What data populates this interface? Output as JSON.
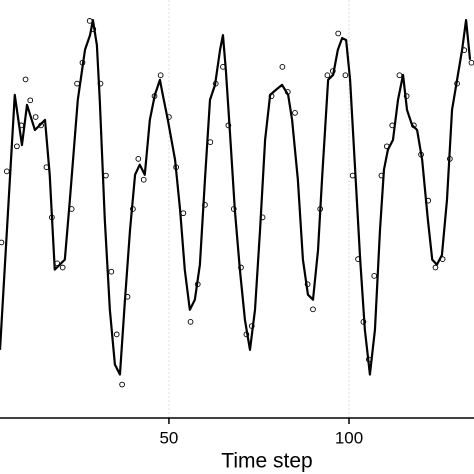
{
  "chart_data": {
    "type": "line",
    "x_label": "Time step",
    "xlim": [
      3.1,
      134.7
    ],
    "ylim": [
      0,
      100
    ],
    "xticks": [
      50,
      100
    ],
    "grid": true,
    "series": [
      {
        "type": "line",
        "color": "#000000",
        "x": [
          3.1,
          7.2,
          9.2,
          10.6,
          12.8,
          15.6,
          16.9,
          18.3,
          19.7,
          21.1,
          22.5,
          24.7,
          26.7,
          28.1,
          28.9,
          30,
          30.8,
          32.2,
          33.6,
          35,
          36.4,
          37.8,
          39.2,
          40.6,
          41.9,
          43.3,
          44.7,
          46.1,
          47.5,
          48.3,
          49.7,
          51.7,
          53.1,
          54.4,
          55.8,
          57.2,
          58.6,
          60,
          61.4,
          62.8,
          64.2,
          65,
          65.8,
          66.9,
          68.3,
          69.7,
          71.1,
          72.5,
          73.9,
          75.3,
          76.7,
          78.1,
          79.7,
          81.4,
          83.1,
          84.2,
          85.8,
          87.2,
          88.6,
          90,
          91.4,
          92.5,
          94.2,
          95.6,
          96.9,
          98.1,
          99.2,
          100.3,
          101.7,
          103.1,
          104.4,
          105.8,
          107.2,
          108.6,
          109.7,
          110.8,
          112.2,
          113.6,
          115,
          116.1,
          117.5,
          118.9,
          120.3,
          121.9,
          123.1,
          124.4,
          125.8,
          127.2,
          128.6,
          130,
          131.4,
          132.5,
          133.6
        ],
        "values": [
          16.3,
          77.3,
          65.3,
          74.9,
          68.9,
          71.3,
          58.2,
          35.5,
          36.7,
          37.9,
          52.2,
          76.1,
          88.1,
          91.6,
          95.2,
          89.2,
          76.1,
          47.4,
          25.9,
          12.8,
          10.4,
          28.3,
          45,
          58.2,
          60.6,
          58.2,
          71.3,
          77.3,
          80.9,
          77.3,
          71.3,
          61.8,
          49.8,
          35.5,
          25.9,
          28.3,
          36.7,
          57,
          76.1,
          79.7,
          88.1,
          91.6,
          83.3,
          68.9,
          49.8,
          35.5,
          23.5,
          16.3,
          25.9,
          45,
          66.5,
          77.3,
          78.5,
          79.7,
          77.3,
          71.3,
          57,
          37.9,
          29.5,
          28.3,
          40.2,
          57,
          80.9,
          82.1,
          88.1,
          90.9,
          90.4,
          80.9,
          59.4,
          37.9,
          21.1,
          10.4,
          21.1,
          45,
          59.4,
          64.2,
          66.5,
          76.1,
          82.1,
          73.7,
          70.1,
          68.9,
          61.8,
          47.4,
          37.9,
          36.7,
          39,
          52.2,
          73.7,
          80.9,
          88.1,
          95.2,
          85.7
        ]
      },
      {
        "type": "scatter",
        "color": "#000000",
        "x": [
          3.5,
          5,
          7.8,
          9,
          10.2,
          11.5,
          13,
          14.5,
          16,
          17.5,
          19,
          20.5,
          23,
          24.5,
          26,
          28,
          29,
          31,
          32.5,
          34,
          35.5,
          37,
          38.5,
          40,
          41.5,
          43,
          46,
          47.7,
          50,
          52,
          54,
          56,
          58,
          60,
          61.5,
          63,
          65,
          66.5,
          68,
          70,
          71.5,
          73,
          76,
          78.5,
          81.5,
          83,
          85,
          88.5,
          90,
          92,
          94,
          95.5,
          97,
          99,
          101,
          102.5,
          104,
          105.5,
          107,
          109,
          110.5,
          112,
          114,
          116,
          118,
          120,
          122,
          124,
          126,
          128,
          130,
          132,
          134
        ],
        "values": [
          42,
          59,
          65,
          70,
          81,
          76,
          72,
          70,
          60,
          48,
          37,
          36,
          50,
          80,
          85,
          95,
          93,
          80,
          58,
          35,
          20,
          8,
          29,
          50,
          62,
          57,
          77,
          82,
          72,
          60,
          49,
          23,
          32,
          51,
          66,
          80,
          84,
          70,
          50,
          36,
          20,
          22,
          48,
          77,
          84,
          78,
          73,
          32,
          26,
          50,
          82,
          83,
          92,
          82,
          58,
          38,
          23,
          14,
          34,
          58,
          65,
          70,
          82,
          77,
          70,
          63,
          52,
          36,
          38,
          62,
          80,
          88,
          85
        ]
      }
    ]
  }
}
